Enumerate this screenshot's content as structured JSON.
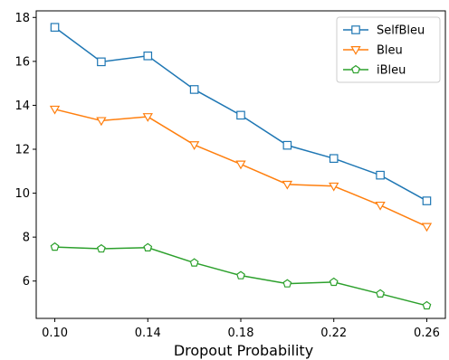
{
  "chart_data": {
    "type": "line",
    "title": "",
    "xlabel": "Dropout Probability",
    "ylabel": "",
    "x": [
      0.1,
      0.12,
      0.14,
      0.16,
      0.18,
      0.2,
      0.22,
      0.24,
      0.26
    ],
    "xticks": [
      "0.10",
      "0.14",
      "0.18",
      "0.22",
      "0.26"
    ],
    "yticks": [
      "6",
      "8",
      "10",
      "12",
      "14",
      "16",
      "18"
    ],
    "xlim": [
      0.092,
      0.268
    ],
    "ylim": [
      4.3,
      18.3
    ],
    "grid": false,
    "legend_position": "top-right",
    "series": [
      {
        "name": "SelfBleu",
        "color": "#1f77b4",
        "marker": "square",
        "values": [
          17.55,
          15.98,
          16.25,
          14.72,
          13.55,
          12.18,
          11.58,
          10.82,
          9.65
        ]
      },
      {
        "name": "Bleu",
        "color": "#ff7f0e",
        "marker": "triangle-down",
        "values": [
          13.82,
          13.3,
          13.48,
          12.2,
          11.32,
          10.4,
          10.32,
          9.45,
          8.48
        ]
      },
      {
        "name": "iBleu",
        "color": "#2ca02c",
        "marker": "pentagon",
        "values": [
          7.55,
          7.47,
          7.52,
          6.83,
          6.25,
          5.88,
          5.95,
          5.42,
          4.88
        ]
      }
    ]
  }
}
